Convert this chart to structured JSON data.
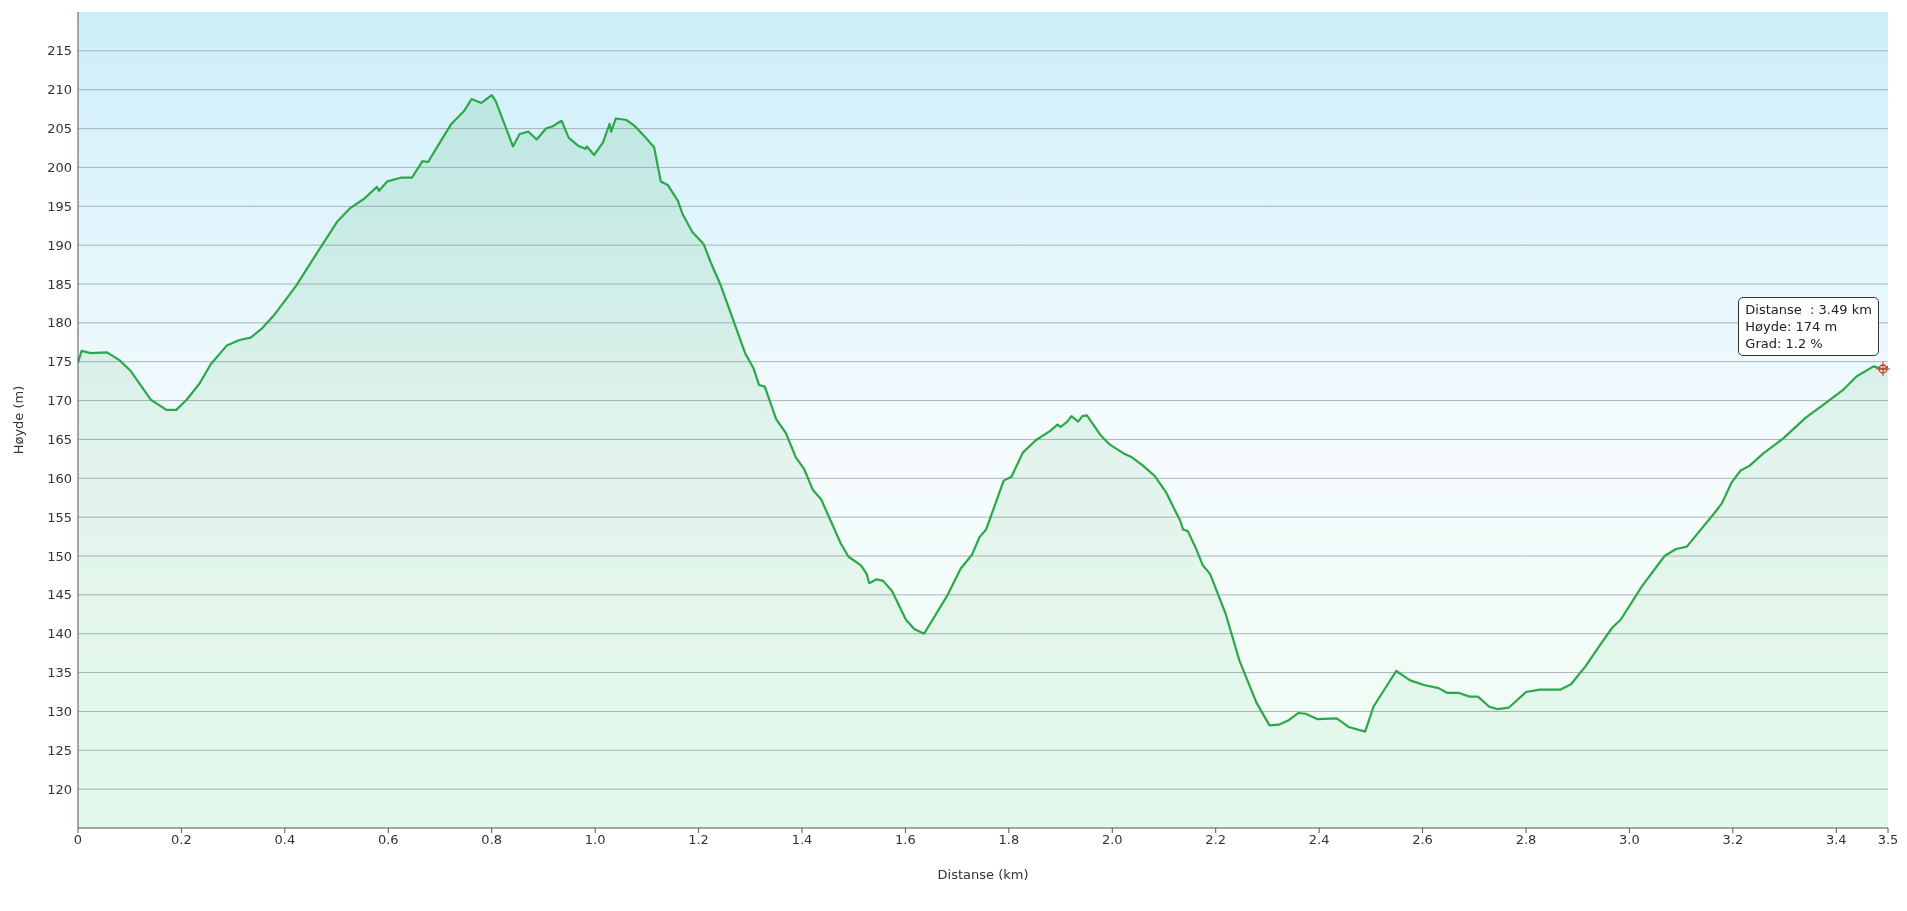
{
  "chart_data": {
    "type": "area",
    "xlabel": "Distanse  (km)",
    "ylabel": "Høyde (m)",
    "x": [
      0,
      0.007,
      0.025,
      0.056,
      0.08,
      0.102,
      0.141,
      0.171,
      0.19,
      0.21,
      0.235,
      0.257,
      0.288,
      0.312,
      0.334,
      0.356,
      0.378,
      0.422,
      0.466,
      0.501,
      0.527,
      0.554,
      0.578,
      0.582,
      0.598,
      0.626,
      0.646,
      0.666,
      0.677,
      0.697,
      0.722,
      0.747,
      0.761,
      0.78,
      0.8,
      0.808,
      0.841,
      0.854,
      0.871,
      0.887,
      0.905,
      0.918,
      0.935,
      0.949,
      0.967,
      0.981,
      0.984,
      0.998,
      1.015,
      1.028,
      1.031,
      1.04,
      1.061,
      1.077,
      1.094,
      1.114,
      1.127,
      1.141,
      1.16,
      1.169,
      1.188,
      1.21,
      1.224,
      1.243,
      1.262,
      1.29,
      1.306,
      1.317,
      1.328,
      1.35,
      1.369,
      1.388,
      1.404,
      1.421,
      1.437,
      1.475,
      1.49,
      1.514,
      1.525,
      1.53,
      1.544,
      1.557,
      1.574,
      1.601,
      1.617,
      1.636,
      1.68,
      1.707,
      1.729,
      1.743,
      1.756,
      1.79,
      1.805,
      1.827,
      1.852,
      1.88,
      1.894,
      1.9,
      1.913,
      1.921,
      1.934,
      1.942,
      1.951,
      1.978,
      1.994,
      2.022,
      2.038,
      2.06,
      2.082,
      2.104,
      2.118,
      2.131,
      2.137,
      2.146,
      2.161,
      2.175,
      2.189,
      2.219,
      2.246,
      2.279,
      2.304,
      2.322,
      2.342,
      2.36,
      2.374,
      2.397,
      2.434,
      2.457,
      2.489,
      2.505,
      2.549,
      2.576,
      2.603,
      2.631,
      2.647,
      2.669,
      2.691,
      2.707,
      2.729,
      2.745,
      2.767,
      2.8,
      2.827,
      2.866,
      2.887,
      2.915,
      2.948,
      2.967,
      2.983,
      3.024,
      3.068,
      3.09,
      3.111,
      3.164,
      3.179,
      3.197,
      3.215,
      3.232,
      3.259,
      3.297,
      3.341,
      3.374,
      3.412,
      3.439,
      3.472,
      3.492,
      3.5
    ],
    "series": [
      {
        "color": "#2ba84a",
        "values": [
          174.9,
          176.4,
          176.1,
          176.2,
          175.2,
          173.8,
          170.1,
          168.8,
          168.8,
          170.1,
          172.2,
          174.7,
          177.1,
          177.8,
          178.1,
          179.3,
          180.9,
          184.8,
          189.4,
          193.0,
          194.8,
          196.0,
          197.5,
          197.0,
          198.2,
          198.7,
          198.7,
          200.8,
          200.7,
          202.9,
          205.6,
          207.3,
          208.8,
          208.3,
          209.3,
          208.5,
          202.7,
          204.3,
          204.6,
          203.6,
          205.0,
          205.3,
          206.0,
          203.8,
          202.8,
          202.4,
          202.7,
          201.6,
          203.2,
          205.6,
          204.6,
          206.3,
          206.1,
          205.3,
          204.1,
          202.6,
          198.2,
          197.7,
          195.7,
          194.0,
          191.7,
          190.1,
          187.7,
          184.8,
          181.3,
          176.1,
          174.2,
          172.0,
          171.8,
          167.6,
          165.8,
          162.7,
          161.2,
          158.5,
          157.3,
          151.6,
          149.9,
          148.8,
          147.7,
          146.5,
          147.0,
          146.8,
          145.5,
          141.8,
          140.6,
          140.0,
          144.8,
          148.4,
          150.2,
          152.4,
          153.4,
          159.7,
          160.2,
          163.3,
          164.9,
          166.1,
          166.9,
          166.6,
          167.3,
          168.0,
          167.3,
          168.0,
          168.1,
          165.5,
          164.4,
          163.2,
          162.7,
          161.6,
          160.3,
          158.2,
          156.3,
          154.6,
          153.4,
          153.2,
          151.1,
          148.8,
          147.7,
          142.6,
          136.5,
          131.1,
          128.2,
          128.3,
          128.9,
          129.8,
          129.7,
          129.0,
          129.1,
          128.0,
          127.4,
          130.6,
          135.2,
          134.0,
          133.4,
          133.0,
          132.4,
          132.4,
          131.9,
          131.9,
          130.6,
          130.3,
          130.5,
          132.5,
          132.8,
          132.8,
          133.5,
          135.8,
          139.0,
          140.8,
          141.8,
          146.1,
          150.0,
          150.9,
          151.2,
          155.5,
          156.8,
          159.4,
          161.0,
          161.6,
          163.2,
          165.1,
          167.8,
          169.4,
          171.3,
          173.1,
          174.4,
          174.0,
          174.4
        ]
      }
    ],
    "xlim": [
      0,
      3.5
    ],
    "xticks": [
      0,
      {
        "value": 0.2,
        "label": "0.2"
      },
      {
        "value": 0.4,
        "label": "0.4"
      },
      {
        "value": 0.6,
        "label": "0.6"
      },
      {
        "value": 0.8,
        "label": "0.8"
      },
      {
        "value": 1,
        "label": "1.0"
      },
      {
        "value": 1.2,
        "label": "1.2"
      },
      {
        "value": 1.4,
        "label": "1.4"
      },
      {
        "value": 1.6,
        "label": "1.6"
      },
      {
        "value": 1.8,
        "label": "1.8"
      },
      {
        "value": 2,
        "label": "2.0"
      },
      {
        "value": 2.2,
        "label": "2.2"
      },
      {
        "value": 2.4,
        "label": "2.4"
      },
      {
        "value": 2.6,
        "label": "2.6"
      },
      {
        "value": 2.8,
        "label": "2.8"
      },
      {
        "value": 3,
        "label": "3.0"
      },
      {
        "value": 3.2,
        "label": "3.2"
      },
      {
        "value": 3.4,
        "label": "3.4"
      },
      3.5
    ],
    "ylim": [
      115,
      220
    ],
    "yticks": [
      120,
      125,
      130,
      135,
      140,
      145,
      150,
      155,
      160,
      165,
      170,
      175,
      180,
      185,
      190,
      195,
      200,
      205,
      210,
      215
    ],
    "grid": "y",
    "marker": "none",
    "legend": false,
    "annotations": [
      {
        "text": "Distanse  : 3.49 km\nHøyde: 174 m\nGrad: 1.2 %",
        "x": 3.49,
        "y": 174
      }
    ]
  }
}
